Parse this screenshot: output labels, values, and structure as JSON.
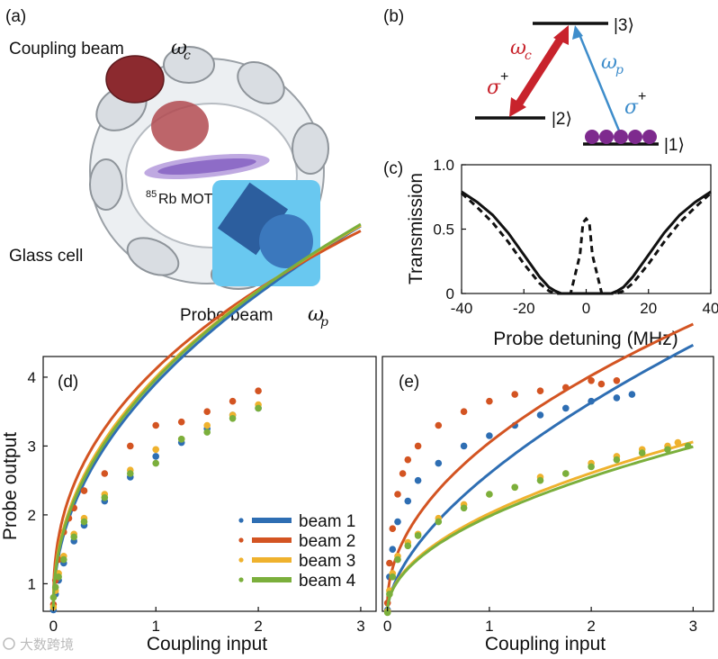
{
  "panels": {
    "a": {
      "label": "(a)",
      "coupling_label": "Coupling beam",
      "coupling_symbol": "ω",
      "coupling_sub": "c",
      "mot_sup": "85",
      "mot_label": "Rb MOT",
      "glass_label": "Glass cell",
      "probe_label": "Probe beam",
      "probe_symbol": "ω",
      "probe_sub": "p"
    },
    "b": {
      "label": "(b)",
      "level3": "|3⟩",
      "level2": "|2⟩",
      "level1": "|1⟩",
      "omega_c": "ω",
      "omega_c_sub": "c",
      "omega_p": "ω",
      "omega_p_sub": "p",
      "sigma_c": "σ",
      "sigma_p": "σ",
      "sigma_sup": "+"
    },
    "watermark": "大数跨境"
  },
  "colors": {
    "beam1": "#2E6EB3",
    "beam2": "#D35422",
    "beam3": "#EFB22E",
    "beam4": "#7BAF3C",
    "coupling_arrow": "#C8232C",
    "probe_arrow": "#3E8DCB",
    "atom": "#7E2A8E"
  },
  "chart_data": [
    {
      "id": "c",
      "type": "line",
      "label": "(c)",
      "xlabel": "Probe detuning (MHz)",
      "ylabel": "Transmission",
      "xlim": [
        -40,
        40
      ],
      "ylim": [
        0,
        1
      ],
      "xticks": [
        "-40",
        "-20",
        "0",
        "20",
        "40"
      ],
      "yticks": [
        "0",
        "0.5",
        "1.0"
      ],
      "series": [
        {
          "name": "solid",
          "style": "solid",
          "x": [
            -40,
            -35,
            -30,
            -25,
            -20,
            -15,
            -12,
            -10,
            -8,
            -6,
            -4,
            0,
            4,
            6,
            8,
            10,
            12,
            15,
            20,
            25,
            30,
            35,
            40
          ],
          "y": [
            0.79,
            0.71,
            0.61,
            0.47,
            0.3,
            0.13,
            0.05,
            0.02,
            0,
            0,
            0,
            0,
            0,
            0,
            0,
            0.02,
            0.05,
            0.13,
            0.3,
            0.47,
            0.61,
            0.71,
            0.79
          ]
        },
        {
          "name": "dashed",
          "style": "dashed",
          "x": [
            -40,
            -35,
            -30,
            -25,
            -20,
            -15,
            -12,
            -10,
            -8,
            -5,
            -2,
            -1,
            0,
            1,
            2,
            5,
            8,
            10,
            12,
            15,
            20,
            25,
            30,
            35,
            40
          ],
          "y": [
            0.78,
            0.67,
            0.55,
            0.4,
            0.23,
            0.08,
            0.02,
            0,
            0,
            0,
            0.3,
            0.55,
            0.58,
            0.55,
            0.3,
            0,
            0,
            0,
            0.02,
            0.08,
            0.23,
            0.4,
            0.55,
            0.67,
            0.78
          ]
        }
      ]
    },
    {
      "id": "d",
      "type": "scatter",
      "label": "(d)",
      "xlabel": "Coupling input",
      "ylabel": "Probe output",
      "xlim": [
        -0.1,
        3.15
      ],
      "ylim": [
        0.6,
        4.3
      ],
      "xticks": [
        "0",
        "1",
        "2",
        "3"
      ],
      "yticks": [
        "1",
        "2",
        "3",
        "4"
      ],
      "legend": [
        "beam 1",
        "beam 2",
        "beam 3",
        "beam 4"
      ],
      "series": [
        {
          "name": "beam 1",
          "color": "#2E6EB3",
          "fit_a": 0.62,
          "fit_b": 3.29,
          "fit_p": 0.48,
          "x": [
            0,
            0.02,
            0.05,
            0.1,
            0.2,
            0.3,
            0.5,
            0.75,
            1.0,
            1.25,
            1.5,
            1.75,
            2.0
          ],
          "y": [
            0.62,
            0.85,
            1.05,
            1.3,
            1.62,
            1.85,
            2.2,
            2.55,
            2.85,
            3.05,
            3.25,
            3.45,
            3.55
          ]
        },
        {
          "name": "beam 2",
          "color": "#D35422",
          "fit_a": 0.7,
          "fit_b": 3.42,
          "fit_p": 0.42,
          "x": [
            0,
            0.02,
            0.05,
            0.1,
            0.15,
            0.2,
            0.3,
            0.5,
            0.75,
            1.0,
            1.25,
            1.5,
            1.75,
            2.0
          ],
          "y": [
            0.7,
            1.05,
            1.35,
            1.75,
            1.95,
            2.1,
            2.35,
            2.6,
            3.0,
            3.3,
            3.35,
            3.5,
            3.65,
            3.8
          ]
        },
        {
          "name": "beam 3",
          "color": "#EFB22E",
          "fit_a": 0.65,
          "fit_b": 3.35,
          "fit_p": 0.46,
          "x": [
            0,
            0.02,
            0.05,
            0.1,
            0.2,
            0.3,
            0.5,
            0.75,
            1.0,
            1.25,
            1.5,
            1.75,
            2.0
          ],
          "y": [
            0.66,
            0.9,
            1.15,
            1.4,
            1.72,
            1.95,
            2.3,
            2.65,
            2.95,
            3.1,
            3.3,
            3.45,
            3.6
          ]
        },
        {
          "name": "beam 4",
          "color": "#7BAF3C",
          "fit_a": 0.64,
          "fit_b": 3.33,
          "fit_p": 0.47,
          "x": [
            0,
            0.02,
            0.05,
            0.1,
            0.2,
            0.3,
            0.5,
            0.75,
            1.0,
            1.25,
            1.5,
            1.75,
            2.0
          ],
          "y": [
            0.8,
            0.95,
            1.1,
            1.35,
            1.68,
            1.9,
            2.25,
            2.6,
            2.75,
            3.1,
            3.2,
            3.4,
            3.55
          ]
        }
      ]
    },
    {
      "id": "e",
      "type": "scatter",
      "label": "(e)",
      "xlabel": "Coupling input",
      "ylabel": "",
      "xlim": [
        -0.05,
        3.2
      ],
      "ylim": [
        0.6,
        4.3
      ],
      "xticks": [
        "0",
        "1",
        "2",
        "3"
      ],
      "yticks": [],
      "series": [
        {
          "name": "beam 1",
          "color": "#2E6EB3",
          "fit_a": 0.6,
          "fit_b": 2.0,
          "fit_p": 0.6,
          "x": [
            0,
            0.02,
            0.05,
            0.1,
            0.2,
            0.3,
            0.5,
            0.75,
            1.0,
            1.25,
            1.5,
            1.75,
            2.0,
            2.25,
            2.4
          ],
          "y": [
            0.62,
            1.1,
            1.5,
            1.9,
            2.2,
            2.5,
            2.75,
            3.0,
            3.15,
            3.3,
            3.45,
            3.55,
            3.65,
            3.7,
            3.75
          ]
        },
        {
          "name": "beam 2",
          "color": "#D35422",
          "fit_a": 0.7,
          "fit_b": 2.35,
          "fit_p": 0.5,
          "x": [
            0,
            0.02,
            0.05,
            0.1,
            0.15,
            0.2,
            0.3,
            0.5,
            0.75,
            1.0,
            1.25,
            1.5,
            1.75,
            2.0,
            2.1,
            2.25
          ],
          "y": [
            0.72,
            1.3,
            1.8,
            2.3,
            2.6,
            2.8,
            3.0,
            3.3,
            3.5,
            3.65,
            3.75,
            3.8,
            3.85,
            3.95,
            3.9,
            3.95
          ]
        },
        {
          "name": "beam 3",
          "color": "#EFB22E",
          "fit_a": 0.6,
          "fit_b": 1.42,
          "fit_p": 0.5,
          "x": [
            0,
            0.02,
            0.05,
            0.1,
            0.2,
            0.3,
            0.5,
            0.75,
            1.0,
            1.25,
            1.5,
            1.75,
            2.0,
            2.25,
            2.5,
            2.75,
            2.85
          ],
          "y": [
            0.6,
            0.9,
            1.15,
            1.4,
            1.6,
            1.72,
            1.95,
            2.15,
            2.3,
            2.4,
            2.55,
            2.6,
            2.75,
            2.85,
            2.95,
            3.0,
            3.05
          ]
        },
        {
          "name": "beam 4",
          "color": "#7BAF3C",
          "fit_a": 0.6,
          "fit_b": 1.38,
          "fit_p": 0.5,
          "x": [
            0,
            0.02,
            0.05,
            0.1,
            0.2,
            0.3,
            0.5,
            0.75,
            1.0,
            1.25,
            1.5,
            1.75,
            2.0,
            2.25,
            2.5,
            2.75,
            2.95
          ],
          "y": [
            0.58,
            0.85,
            1.1,
            1.35,
            1.55,
            1.7,
            1.9,
            2.1,
            2.3,
            2.4,
            2.5,
            2.6,
            2.7,
            2.8,
            2.9,
            2.95,
            3.0
          ]
        }
      ]
    }
  ]
}
